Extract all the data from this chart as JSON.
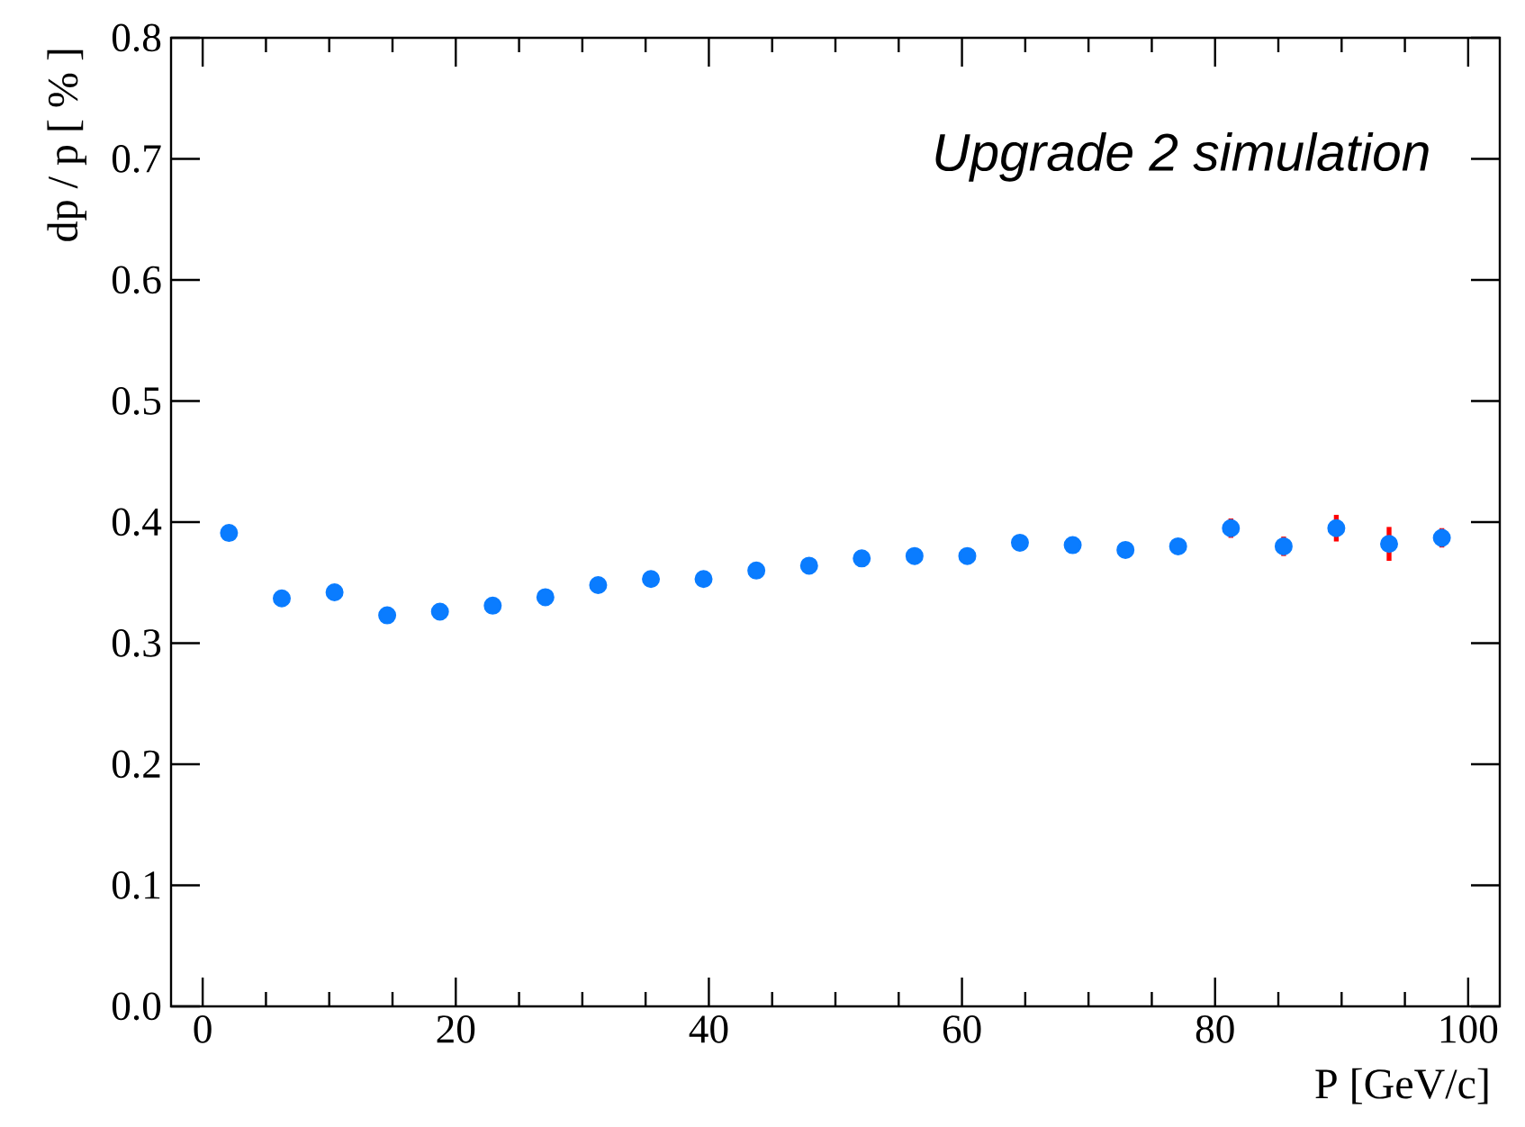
{
  "chart_data": {
    "type": "scatter",
    "xlabel": "P [GeV/c]",
    "ylabel": "dp / p [ % ]",
    "annotations": [
      "*Upgrade 2 simulation*"
    ],
    "x": [
      2.08,
      6.25,
      10.42,
      14.58,
      18.75,
      22.92,
      27.08,
      31.25,
      35.42,
      39.58,
      43.75,
      47.92,
      52.08,
      56.25,
      60.42,
      64.58,
      68.75,
      72.92,
      77.08,
      81.25,
      85.42,
      89.58,
      93.75,
      97.92
    ],
    "series": [
      {
        "color": "#0a7cff",
        "values": [
          0.391,
          0.337,
          0.342,
          0.323,
          0.326,
          0.331,
          0.338,
          0.348,
          0.353,
          0.353,
          0.36,
          0.364,
          0.37,
          0.372,
          0.372,
          0.383,
          0.381,
          0.377,
          0.38,
          0.395,
          0.38,
          0.395,
          0.382,
          0.387
        ],
        "errors": [
          null,
          null,
          null,
          null,
          null,
          null,
          null,
          null,
          null,
          null,
          null,
          null,
          null,
          null,
          null,
          null,
          null,
          null,
          null,
          0.008,
          0.008,
          0.011,
          0.014,
          0.008
        ]
      }
    ],
    "xlim": [
      -2.5,
      102.5
    ],
    "xticks": [
      0,
      20,
      40,
      60,
      80,
      100
    ],
    "ylim": [
      0,
      0.8
    ],
    "yticks": [
      {
        "value": 0,
        "label": "0.0"
      },
      {
        "value": 0.1,
        "label": "0.1"
      },
      {
        "value": 0.2,
        "label": "0.2"
      },
      {
        "value": 0.3,
        "label": "0.3"
      },
      {
        "value": 0.4,
        "label": "0.4"
      },
      {
        "value": 0.5,
        "label": "0.5"
      },
      {
        "value": 0.6,
        "label": "0.6"
      },
      {
        "value": 0.7,
        "label": "0.7"
      },
      {
        "value": 0.8,
        "label": "0.8"
      }
    ],
    "grid": false
  }
}
